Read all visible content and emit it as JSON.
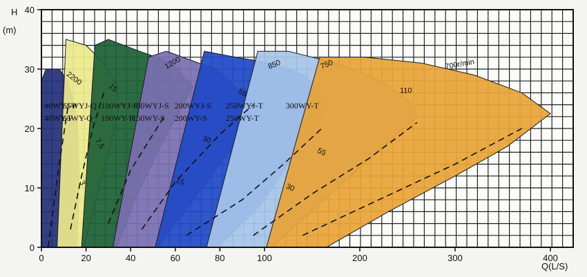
{
  "chart_data": {
    "type": "area",
    "title": "",
    "xlabel": "Q(L/S)",
    "ylabel": "H",
    "ylabel_unit": "(m)",
    "xaxis": {
      "segments": [
        {
          "from": 0,
          "to": 100,
          "ticks": [
            0,
            20,
            40,
            60,
            80,
            100
          ]
        },
        {
          "from": 100,
          "to": 400,
          "ticks": [
            200,
            300,
            400
          ]
        }
      ]
    },
    "yaxis": {
      "range": [
        0,
        40
      ],
      "ticks": [
        0,
        10,
        20,
        30,
        40
      ]
    },
    "grid": true,
    "regions": [
      {
        "models": [
          "40WYJ-P",
          "40WY-P"
        ],
        "color": "#252f7a",
        "outline": [
          [
            0,
            0
          ],
          [
            16,
            0
          ],
          [
            17,
            12
          ],
          [
            16,
            22
          ],
          [
            12,
            28
          ],
          [
            8,
            30
          ],
          [
            2,
            30
          ],
          [
            0,
            28
          ]
        ],
        "speed_labels": [],
        "efficiency_labels": []
      },
      {
        "models": [
          "65WYJ-Q",
          "65WY-Q"
        ],
        "color": "#ece88c",
        "outline": [
          [
            7,
            0
          ],
          [
            19,
            0
          ],
          [
            23,
            6
          ],
          [
            30,
            16
          ],
          [
            34,
            22
          ],
          [
            34,
            27
          ],
          [
            28,
            31
          ],
          [
            20,
            34
          ],
          [
            11,
            35
          ]
        ],
        "speed_labels": [
          {
            "text": "2200",
            "x": 11,
            "y": 29,
            "rotate": 38
          }
        ],
        "efficiency_labels": [
          {
            "text": "15",
            "x": 30,
            "y": 27,
            "rotate": 40
          },
          {
            "text": "7.5",
            "x": 24,
            "y": 18,
            "rotate": 58
          },
          {
            "text": "3",
            "x": 17,
            "y": 11,
            "rotate": 65
          }
        ]
      },
      {
        "models": [
          "100WYJ-R",
          "100WY-R"
        ],
        "color": "#1d6037",
        "outline": [
          [
            18,
            0
          ],
          [
            34,
            0
          ],
          [
            42,
            8
          ],
          [
            52,
            16
          ],
          [
            62,
            23
          ],
          [
            68,
            27
          ],
          [
            59,
            31
          ],
          [
            44,
            33
          ],
          [
            30,
            35
          ],
          [
            24,
            34
          ]
        ],
        "speed_labels": [],
        "efficiency_labels": []
      },
      {
        "models": [
          "150WYJ-S",
          "150WY-S"
        ],
        "color": "#7a6fb0",
        "outline": [
          [
            32,
            0
          ],
          [
            52,
            0
          ],
          [
            62,
            5
          ],
          [
            74,
            11
          ],
          [
            86,
            17
          ],
          [
            95,
            22
          ],
          [
            96,
            24
          ],
          [
            78,
            30
          ],
          [
            56,
            33
          ],
          [
            48,
            32
          ]
        ],
        "speed_labels": [
          {
            "text": "1200",
            "x": 56,
            "y": 30,
            "rotate": -30
          }
        ],
        "efficiency_labels": [
          {
            "text": "55",
            "x": 88,
            "y": 26,
            "rotate": 28
          },
          {
            "text": "30",
            "x": 72,
            "y": 18,
            "rotate": 20
          },
          {
            "text": "15",
            "x": 60,
            "y": 11,
            "rotate": 22
          }
        ]
      },
      {
        "models": [
          "200WYJ-S",
          "200WY-S"
        ],
        "color": "#2049c7",
        "outline": [
          [
            51,
            0
          ],
          [
            79,
            0
          ],
          [
            98,
            7
          ],
          [
            125,
            14
          ],
          [
            154,
            20
          ],
          [
            167,
            24
          ],
          [
            142,
            29
          ],
          [
            107,
            31
          ],
          [
            87,
            32
          ],
          [
            73,
            33
          ]
        ],
        "speed_labels": [
          {
            "text": "850",
            "x": 105,
            "y": 30,
            "rotate": -22
          }
        ],
        "efficiency_labels": [
          {
            "text": "55",
            "x": 155,
            "y": 16,
            "rotate": 25
          },
          {
            "text": "30",
            "x": 122,
            "y": 10,
            "rotate": 25
          }
        ]
      },
      {
        "models": [
          "250WYJ-T",
          "250WY-T"
        ],
        "color": "#a6c4ea",
        "outline": [
          [
            74,
            0
          ],
          [
            108,
            0
          ],
          [
            148,
            6
          ],
          [
            190,
            12
          ],
          [
            232,
            18
          ],
          [
            260,
            22
          ],
          [
            256,
            24
          ],
          [
            222,
            28
          ],
          [
            175,
            31
          ],
          [
            125,
            33
          ],
          [
            97,
            33
          ]
        ],
        "speed_labels": [
          {
            "text": "750",
            "x": 160,
            "y": 30,
            "rotate": -22
          }
        ],
        "efficiency_labels": [
          {
            "text": "110",
            "x": 242,
            "y": 26,
            "rotate": 0
          }
        ]
      },
      {
        "models": [
          "300WY-T"
        ],
        "color": "#e8a437",
        "outline": [
          [
            102,
            0
          ],
          [
            165,
            0
          ],
          [
            230,
            6
          ],
          [
            300,
            12
          ],
          [
            355,
            17
          ],
          [
            400,
            22.5
          ],
          [
            370,
            26
          ],
          [
            320,
            29
          ],
          [
            265,
            31
          ],
          [
            205,
            32
          ],
          [
            158,
            32
          ]
        ],
        "speed_labels": [
          {
            "text": "700r/min",
            "x": 290,
            "y": 30,
            "rotate": -10
          }
        ],
        "efficiency_labels": []
      }
    ]
  }
}
